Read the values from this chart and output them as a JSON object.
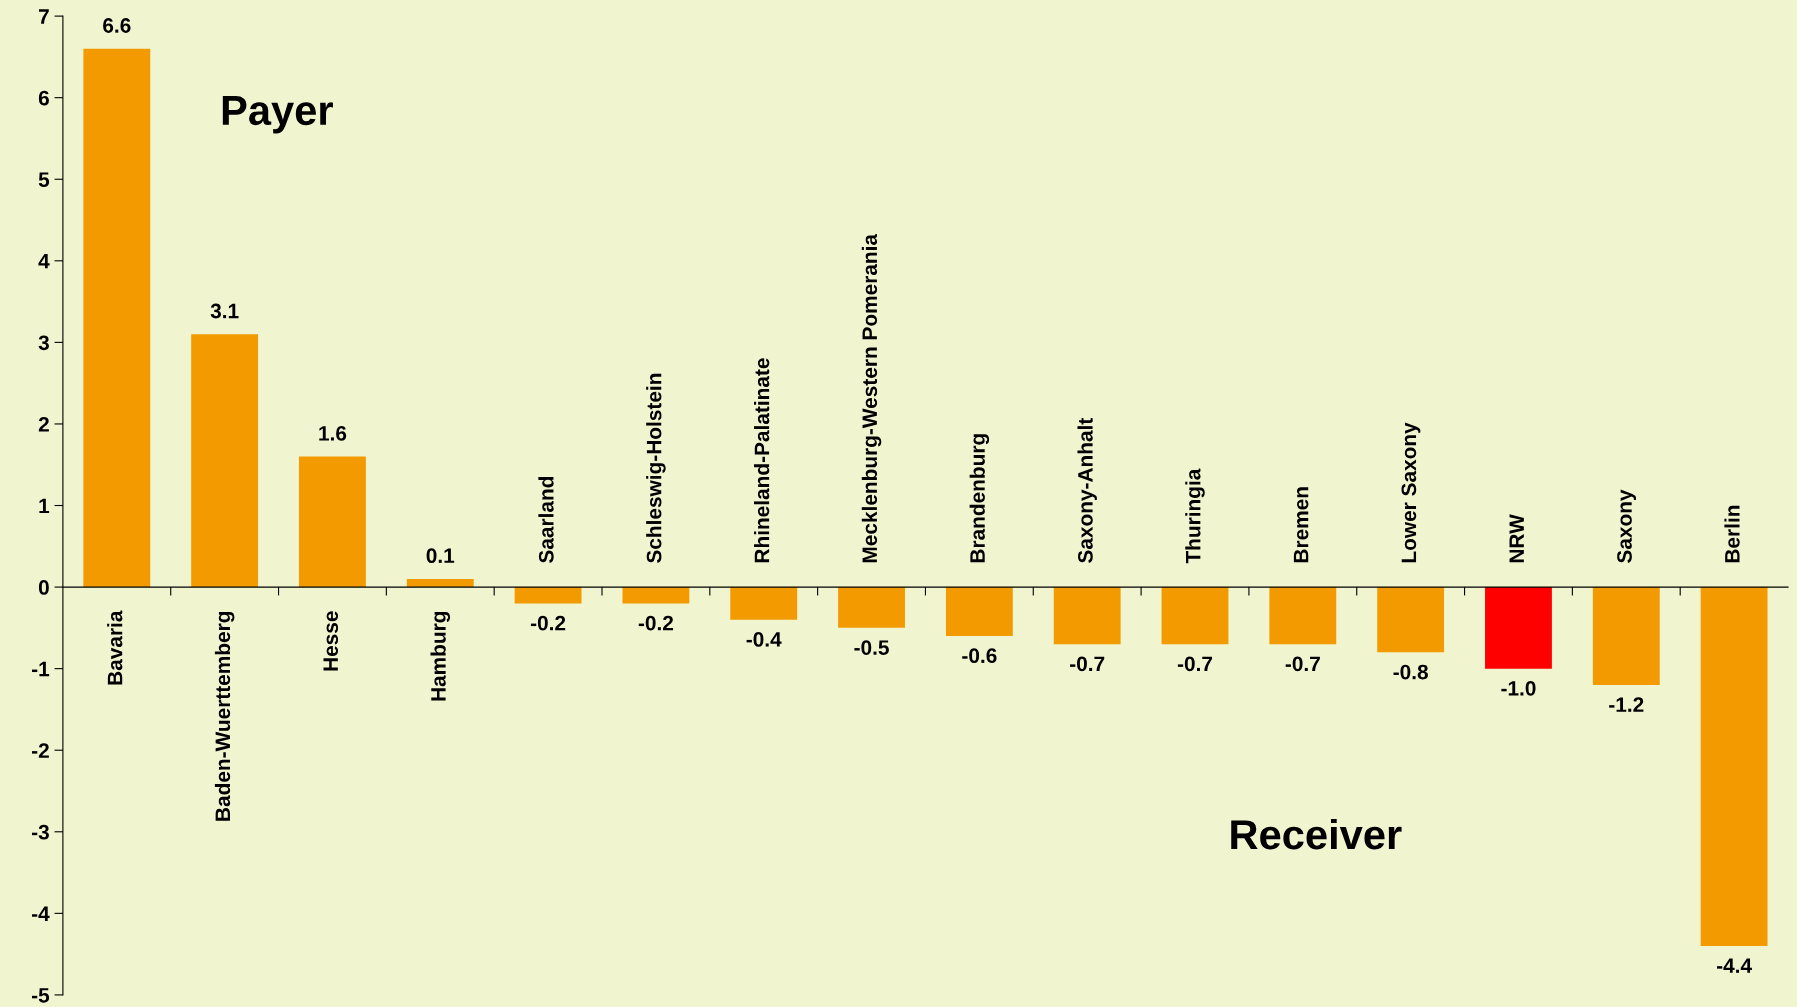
{
  "chart_data": {
    "type": "bar",
    "categories": [
      "Bavaria",
      "Baden-Wuerttemberg",
      "Hesse",
      "Hamburg",
      "Saarland",
      "Schleswig-Holstein",
      "Rhineland-Palatinate",
      "Mecklenburg-Western Pomerania",
      "Brandenburg",
      "Saxony-Anhalt",
      "Thuringia",
      "Bremen",
      "Lower Saxony",
      "NRW",
      "Saxony",
      "Berlin"
    ],
    "values": [
      6.6,
      3.1,
      1.6,
      0.1,
      -0.2,
      -0.2,
      -0.4,
      -0.5,
      -0.6,
      -0.7,
      -0.7,
      -0.7,
      -0.8,
      -1.0,
      -1.2,
      -4.4
    ],
    "value_labels": [
      "6.6",
      "3.1",
      "1.6",
      "0.1",
      "-0.2",
      "-0.2",
      "-0.4",
      "-0.5",
      "-0.6",
      "-0.7",
      "-0.7",
      "-0.7",
      "-0.8",
      "-1.0",
      "-1.2",
      "-4.4"
    ],
    "colors": [
      "#f29a00",
      "#f29a00",
      "#f29a00",
      "#f29a00",
      "#f29a00",
      "#f29a00",
      "#f29a00",
      "#f29a00",
      "#f29a00",
      "#f29a00",
      "#f29a00",
      "#f29a00",
      "#f29a00",
      "#ff0000",
      "#f29a00",
      "#f29a00"
    ],
    "ylim": [
      -5,
      7
    ],
    "yticks": [
      -5,
      -4,
      -3,
      -2,
      -1,
      0,
      1,
      2,
      3,
      4,
      5,
      6,
      7
    ],
    "grid": false,
    "legend": false,
    "annotations": [
      "Payer",
      "Receiver"
    ]
  }
}
